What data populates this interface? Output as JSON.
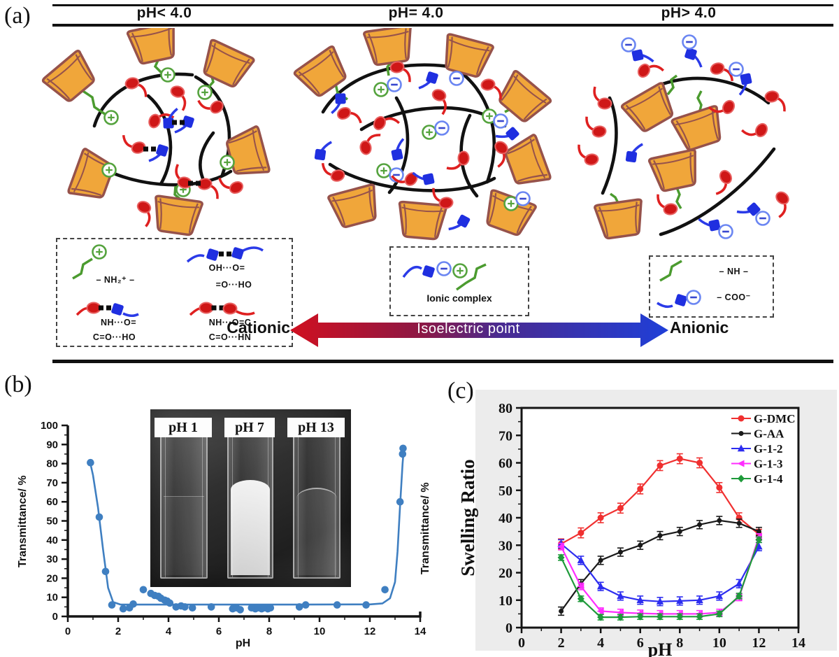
{
  "panel_a": {
    "label": "(a)",
    "headers": [
      "pH< 4.0",
      "pH= 4.0",
      "pH> 4.0"
    ],
    "interaction_legend": {
      "nh2": "– NH₂⁺ –",
      "cooh_top": "OH···O=",
      "cooh_bottom": "=O···HO",
      "amide_acid_top": "NH···O=",
      "amide_acid_bottom": "C=O···HO",
      "amide_amide_top": "NH···O=C",
      "amide_amide_bottom": "C=O···HN"
    },
    "ionic_complex_label": "Ionic complex",
    "species_legend": {
      "nh": "– NH –",
      "coo": "– COO⁻"
    },
    "axis_arrow": {
      "left": "Cationic",
      "center": "Isoelectric point",
      "right": "Anionic"
    },
    "colors": {
      "cup_fill": "#f0a63a",
      "cup_stroke": "#96524b",
      "chain_green": "#4b9b2f",
      "chain_red": "#df2020",
      "chain_blue": "#2b3be8",
      "arrow_red": "#d01020",
      "arrow_blue": "#1f3fd8"
    }
  },
  "panel_b": {
    "label": "(b)",
    "inset_labels": [
      "pH 1",
      "pH 7",
      "pH 13"
    ]
  },
  "panel_c": {
    "label": "(c)"
  },
  "chart_data": [
    {
      "id": "transmittance_vs_pH",
      "type": "scatter",
      "xlabel": "pH",
      "ylabel_left": "Transmittance/ %",
      "ylabel_right": "Transmittance/ %",
      "xlim": [
        0,
        14
      ],
      "ylim": [
        0,
        100
      ],
      "xticks": [
        0,
        2,
        4,
        6,
        8,
        10,
        12,
        14
      ],
      "yticks": [
        0,
        10,
        20,
        30,
        40,
        50,
        60,
        70,
        80,
        90,
        100
      ],
      "grid": false,
      "color": "#3f7fc1",
      "points": [
        [
          0.9,
          80.5
        ],
        [
          1.25,
          52
        ],
        [
          1.5,
          23.5
        ],
        [
          1.75,
          6
        ],
        [
          2.2,
          4
        ],
        [
          2.45,
          4.5
        ],
        [
          2.6,
          6.5
        ],
        [
          3.0,
          14
        ],
        [
          3.3,
          12
        ],
        [
          3.45,
          11
        ],
        [
          3.6,
          10.5
        ],
        [
          3.7,
          9.5
        ],
        [
          3.85,
          8.5
        ],
        [
          3.95,
          8
        ],
        [
          4.05,
          7
        ],
        [
          4.3,
          5
        ],
        [
          4.5,
          5.5
        ],
        [
          4.65,
          5
        ],
        [
          4.95,
          4.5
        ],
        [
          5.7,
          5
        ],
        [
          6.55,
          4
        ],
        [
          6.7,
          4.5
        ],
        [
          6.85,
          3.5
        ],
        [
          7.3,
          4.5
        ],
        [
          7.45,
          4
        ],
        [
          7.55,
          4.5
        ],
        [
          7.7,
          4
        ],
        [
          7.8,
          4.5
        ],
        [
          7.95,
          4
        ],
        [
          8.05,
          4.5
        ],
        [
          9.2,
          5
        ],
        [
          9.45,
          6
        ],
        [
          10.7,
          6
        ],
        [
          11.85,
          6
        ],
        [
          12.6,
          14
        ],
        [
          13.2,
          60
        ],
        [
          13.3,
          85
        ],
        [
          13.32,
          88
        ]
      ],
      "fit_curve": [
        [
          0.88,
          81
        ],
        [
          1.0,
          74
        ],
        [
          1.2,
          57
        ],
        [
          1.4,
          35
        ],
        [
          1.6,
          15
        ],
        [
          1.8,
          7.5
        ],
        [
          2.1,
          6.2
        ],
        [
          3,
          6.2
        ],
        [
          6,
          6.2
        ],
        [
          9,
          6.2
        ],
        [
          12,
          6.3
        ],
        [
          12.5,
          6.8
        ],
        [
          12.8,
          9.5
        ],
        [
          13.0,
          18
        ],
        [
          13.1,
          34
        ],
        [
          13.2,
          58
        ],
        [
          13.3,
          80
        ],
        [
          13.35,
          88
        ]
      ]
    },
    {
      "id": "swelling_ratio_vs_pH",
      "type": "line",
      "xlabel": "pH",
      "ylabel": "Swelling Ratio",
      "xlim": [
        0,
        14
      ],
      "ylim": [
        0,
        80
      ],
      "xticks": [
        0,
        2,
        4,
        6,
        8,
        10,
        12,
        14
      ],
      "yticks": [
        0,
        10,
        20,
        30,
        40,
        50,
        60,
        70,
        80
      ],
      "grid": false,
      "legend_position": "top-right",
      "x": [
        2,
        3,
        4,
        5,
        6,
        7,
        8,
        9,
        10,
        11,
        12
      ],
      "series": [
        {
          "name": "G-DMC",
          "color": "#f03030",
          "marker": "circle",
          "values": [
            30.5,
            34.5,
            40,
            43.5,
            50.5,
            59,
            61.5,
            60,
            51,
            40,
            34
          ],
          "error": 1.8
        },
        {
          "name": "G-AA",
          "color": "#1a1a1a",
          "marker": "circle_small",
          "values": [
            6,
            16,
            24.5,
            27.5,
            30,
            33.5,
            35,
            37.5,
            39,
            38,
            35
          ],
          "error": 1.5
        },
        {
          "name": "G-1-2",
          "color": "#2d2df0",
          "marker": "triangle",
          "values": [
            30.5,
            24.5,
            15,
            11.5,
            10,
            9.5,
            9.7,
            10,
            11.5,
            16,
            29.5
          ],
          "error": 1.5
        },
        {
          "name": "G-1-3",
          "color": "#ff2dff",
          "marker": "tri_left",
          "values": [
            29.5,
            15,
            6,
            5.5,
            5.2,
            5,
            5,
            5,
            5.5,
            11,
            33
          ],
          "error": 1.2
        },
        {
          "name": "G-1-4",
          "color": "#1e9a3a",
          "marker": "diamond",
          "values": [
            25.5,
            10.5,
            3.8,
            3.8,
            4,
            4,
            4,
            4,
            5,
            11.5,
            32
          ],
          "error": 1.0
        }
      ]
    }
  ]
}
